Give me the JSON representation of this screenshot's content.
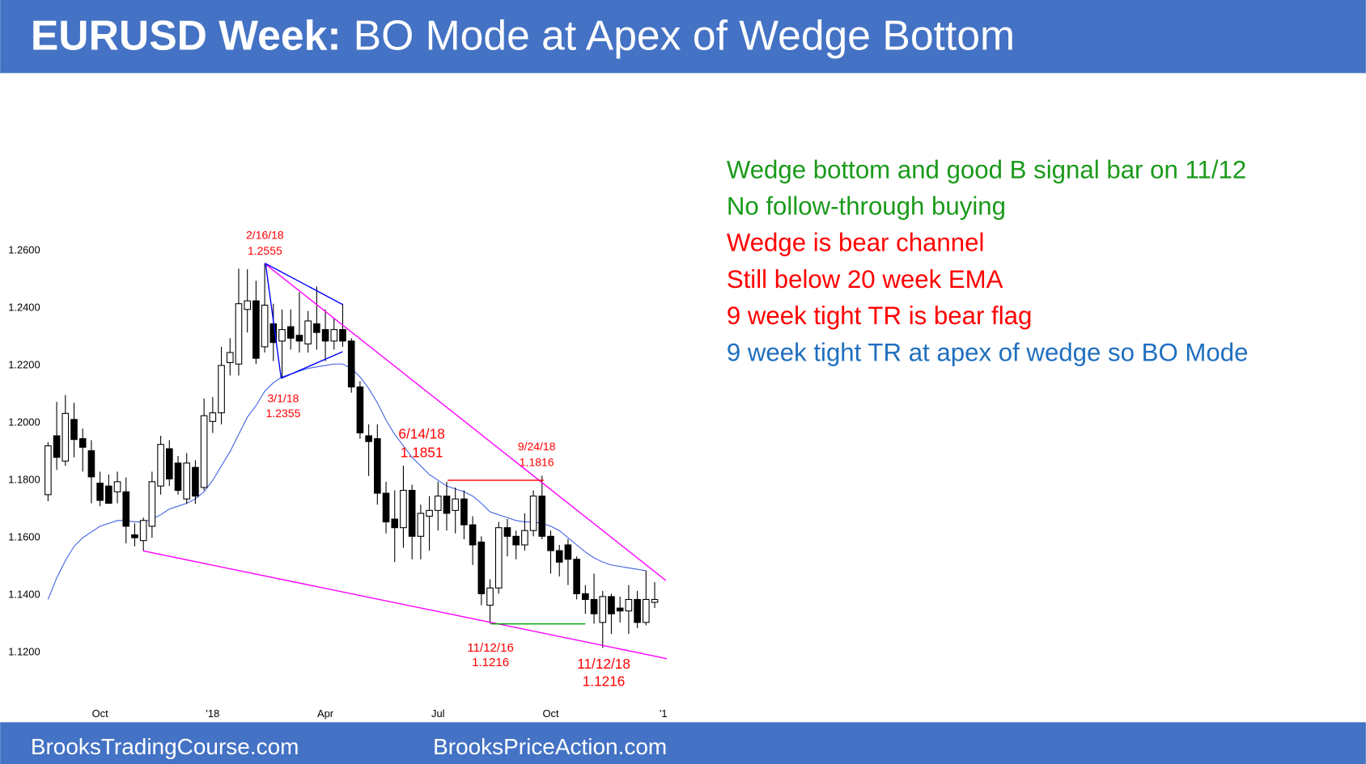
{
  "header": {
    "title_bold": "EURUSD Week:",
    "title_rest": "BO Mode at Apex of Wedge Bottom"
  },
  "chart_data": {
    "type": "candlestick",
    "categories": [
      null,
      null,
      null,
      null,
      null,
      null,
      "Oct",
      null,
      null,
      null,
      null,
      null,
      null,
      null,
      null,
      null,
      null,
      null,
      null,
      "'18",
      null,
      null,
      null,
      null,
      null,
      null,
      null,
      null,
      null,
      null,
      null,
      null,
      "Apr",
      null,
      null,
      null,
      null,
      null,
      null,
      null,
      null,
      null,
      null,
      null,
      null,
      "Jul",
      null,
      null,
      null,
      null,
      null,
      null,
      null,
      null,
      null,
      null,
      null,
      null,
      "Oct",
      null,
      null,
      null,
      null,
      null,
      null,
      null,
      null,
      null,
      null,
      null,
      null,
      "'1"
    ],
    "open": [
      1.175,
      1.1955,
      1.1867,
      1.2012,
      1.1945,
      1.1903,
      1.179,
      1.178,
      1.176,
      1.176,
      1.161,
      1.159,
      1.164,
      1.178,
      1.191,
      1.186,
      1.1735,
      1.1845,
      1.1775,
      1.2005,
      1.2035,
      1.221,
      1.2205,
      1.2395,
      1.2425,
      1.2265,
      1.2345,
      1.2285,
      1.2335,
      1.2305,
      1.2275,
      1.2345,
      1.2325,
      1.2285,
      1.2325,
      1.2285,
      1.2125,
      1.1955,
      1.1945,
      1.1755,
      1.1665,
      1.1635,
      1.1765,
      1.1605,
      1.1675,
      1.1695,
      1.1745,
      1.1695,
      1.1735,
      1.1645,
      1.1585,
      1.1365,
      1.1425,
      1.1635,
      1.1605,
      1.1575,
      1.1625,
      1.1745,
      1.1605,
      1.1555,
      1.1575,
      1.1525,
      1.1405,
      1.1385,
      1.1305,
      1.1395,
      1.1355,
      1.1345,
      1.1385,
      1.1305,
      1.1375,
      null
    ],
    "high": [
      1.1933,
      1.2073,
      1.2097,
      1.207,
      1.198,
      1.194,
      1.183,
      1.182,
      1.183,
      1.181,
      1.165,
      1.167,
      1.183,
      1.1955,
      1.194,
      1.1885,
      1.1895,
      1.187,
      1.2085,
      1.209,
      1.2265,
      1.2295,
      1.2537,
      1.2535,
      1.2495,
      1.2555,
      1.2415,
      1.2395,
      1.2395,
      1.2455,
      1.239,
      1.2475,
      1.2395,
      1.2365,
      1.2415,
      1.2295,
      1.2145,
      1.1995,
      1.1995,
      1.1795,
      1.1765,
      1.1851,
      1.1785,
      1.1715,
      1.1745,
      1.1795,
      1.1795,
      1.1775,
      1.1765,
      1.1675,
      1.1605,
      1.1455,
      1.1655,
      1.1665,
      1.1625,
      1.1685,
      1.1765,
      1.1816,
      1.1625,
      1.1575,
      1.1595,
      1.1535,
      1.1435,
      1.1475,
      1.1415,
      1.1405,
      1.1395,
      1.1435,
      1.1415,
      1.1485,
      1.1445,
      null
    ],
    "low": [
      1.1727,
      1.1836,
      1.185,
      1.188,
      1.183,
      1.172,
      1.171,
      1.1718,
      1.172,
      1.158,
      1.157,
      1.1554,
      1.16,
      1.175,
      1.178,
      1.175,
      1.1718,
      1.1718,
      1.1765,
      1.1965,
      1.1995,
      1.2165,
      1.2165,
      1.2315,
      1.2205,
      1.2245,
      1.2215,
      1.2155,
      1.2255,
      1.2245,
      1.2245,
      1.2255,
      1.2215,
      1.2255,
      1.2265,
      1.2105,
      1.1945,
      1.1815,
      1.1715,
      1.1615,
      1.1515,
      1.1565,
      1.1525,
      1.1525,
      1.1555,
      1.1625,
      1.1625,
      1.1615,
      1.1595,
      1.1505,
      1.1365,
      1.1301,
      1.1405,
      1.1535,
      1.1525,
      1.1555,
      1.1605,
      1.1595,
      1.1475,
      1.1465,
      1.1435,
      1.1385,
      1.1335,
      1.1301,
      1.1216,
      1.1265,
      1.1305,
      1.1265,
      1.1285,
      1.1295,
      1.1355,
      null
    ],
    "close": [
      1.192,
      1.188,
      1.2033,
      1.1942,
      1.1915,
      1.1812,
      1.173,
      1.172,
      1.1795,
      1.164,
      1.16,
      1.166,
      1.1795,
      1.1925,
      1.1805,
      1.1765,
      1.186,
      1.1745,
      1.2025,
      1.2035,
      1.22,
      1.2245,
      1.2415,
      1.2425,
      1.2225,
      1.241,
      1.228,
      1.2325,
      1.2295,
      1.2285,
      1.2355,
      1.2315,
      1.2285,
      1.2325,
      1.2285,
      1.2125,
      1.1965,
      1.1935,
      1.1755,
      1.1655,
      1.1635,
      1.1765,
      1.1605,
      1.1685,
      1.1695,
      1.1745,
      1.1685,
      1.1735,
      1.1645,
      1.1575,
      1.1405,
      1.1425,
      1.1635,
      1.1605,
      1.1575,
      1.1625,
      1.1745,
      1.1605,
      1.1555,
      1.1515,
      1.1525,
      1.1405,
      1.1385,
      1.1335,
      1.1395,
      1.1335,
      1.1345,
      1.1385,
      1.1305,
      1.1385,
      1.1385,
      null
    ],
    "up_color": "#ffffff",
    "down_color": "#000000",
    "ema": {
      "color": "#3f5fe0",
      "values": [
        1.1385,
        1.146,
        1.152,
        1.157,
        1.16,
        1.162,
        1.164,
        1.165,
        1.166,
        1.166,
        1.1655,
        1.1655,
        1.1665,
        1.168,
        1.17,
        1.171,
        1.172,
        1.1735,
        1.176,
        1.18,
        1.185,
        1.19,
        1.196,
        1.202,
        1.206,
        1.211,
        1.214,
        1.216,
        1.217,
        1.218,
        1.219,
        1.2195,
        1.22,
        1.2205,
        1.2205,
        1.219,
        1.216,
        1.212,
        1.207,
        1.201,
        1.196,
        1.192,
        1.188,
        1.185,
        1.182,
        1.18,
        1.178,
        1.177,
        1.176,
        1.1745,
        1.172,
        1.169,
        1.168,
        1.167,
        1.166,
        1.1655,
        1.1655,
        1.165,
        1.164,
        1.1625,
        1.16,
        1.1575,
        1.155,
        1.153,
        1.1515,
        1.1505,
        1.15,
        1.1495,
        1.149,
        1.1485,
        null,
        null
      ]
    },
    "trendlines": [
      {
        "color": "#ff00ff",
        "x": [
          25.0,
          71.3
        ],
        "y": [
          1.2555,
          1.1451
        ]
      },
      {
        "color": "#ff00ff",
        "x": [
          11.0,
          71.4
        ],
        "y": [
          1.1554,
          1.1179
        ]
      },
      {
        "color": "#0000ff",
        "x": [
          26.9,
          25.1,
          34.0
        ],
        "y": [
          1.2155,
          1.2555,
          1.2412
        ]
      },
      {
        "color": "#0000ff",
        "x": [
          26.9,
          34.0
        ],
        "y": [
          1.2155,
          1.2248
        ]
      },
      {
        "color": "#ff0000",
        "x": [
          46.1,
          57.2
        ],
        "y": [
          1.18,
          1.18
        ]
      },
      {
        "color": "#00a000",
        "x": [
          51.1,
          62.0
        ],
        "y": [
          1.13,
          1.13
        ]
      }
    ],
    "annotations": [
      {
        "date": "2/16/18",
        "price": 1.2555
      },
      {
        "date": "3/1/18",
        "price": 1.2355
      },
      {
        "date": "6/14/18",
        "price": 1.1851
      },
      {
        "date": "9/24/18",
        "price": 1.1816
      },
      {
        "date": "11/12/16",
        "price": 1.1216
      },
      {
        "date": "11/12/18",
        "price": 1.1216
      }
    ],
    "annotation_color": "#ff0000",
    "ylim": [
      1.1115,
      1.27
    ],
    "yticks": [
      {
        "value": 1.12,
        "label": "1.1200"
      },
      {
        "value": 1.14,
        "label": "1.1400"
      },
      {
        "value": 1.16,
        "label": "1.1600"
      },
      {
        "value": 1.18,
        "label": "1.1800"
      },
      {
        "value": 1.2,
        "label": "1.2000"
      },
      {
        "value": 1.22,
        "label": "1.2200"
      },
      {
        "value": 1.24,
        "label": "1.2400"
      },
      {
        "value": 1.26,
        "label": "1.2600"
      }
    ]
  },
  "notes": [
    {
      "text": "Wedge bottom and good B signal bar on 11/12",
      "color": "#1a9a1a"
    },
    {
      "text": "No follow-through buying",
      "color": "#1a9a1a"
    },
    {
      "text": "Wedge is bear channel",
      "color": "#ff0000"
    },
    {
      "text": "Still below 20 week EMA",
      "color": "#ff0000"
    },
    {
      "text": "9 week tight TR is bear flag",
      "color": "#ff0000"
    },
    {
      "text": "9 week tight TR at apex of wedge so BO Mode",
      "color": "#1f6fbf"
    }
  ],
  "footer": {
    "left": "BrooksTradingCourse.com",
    "right": "BrooksPriceAction.com"
  }
}
